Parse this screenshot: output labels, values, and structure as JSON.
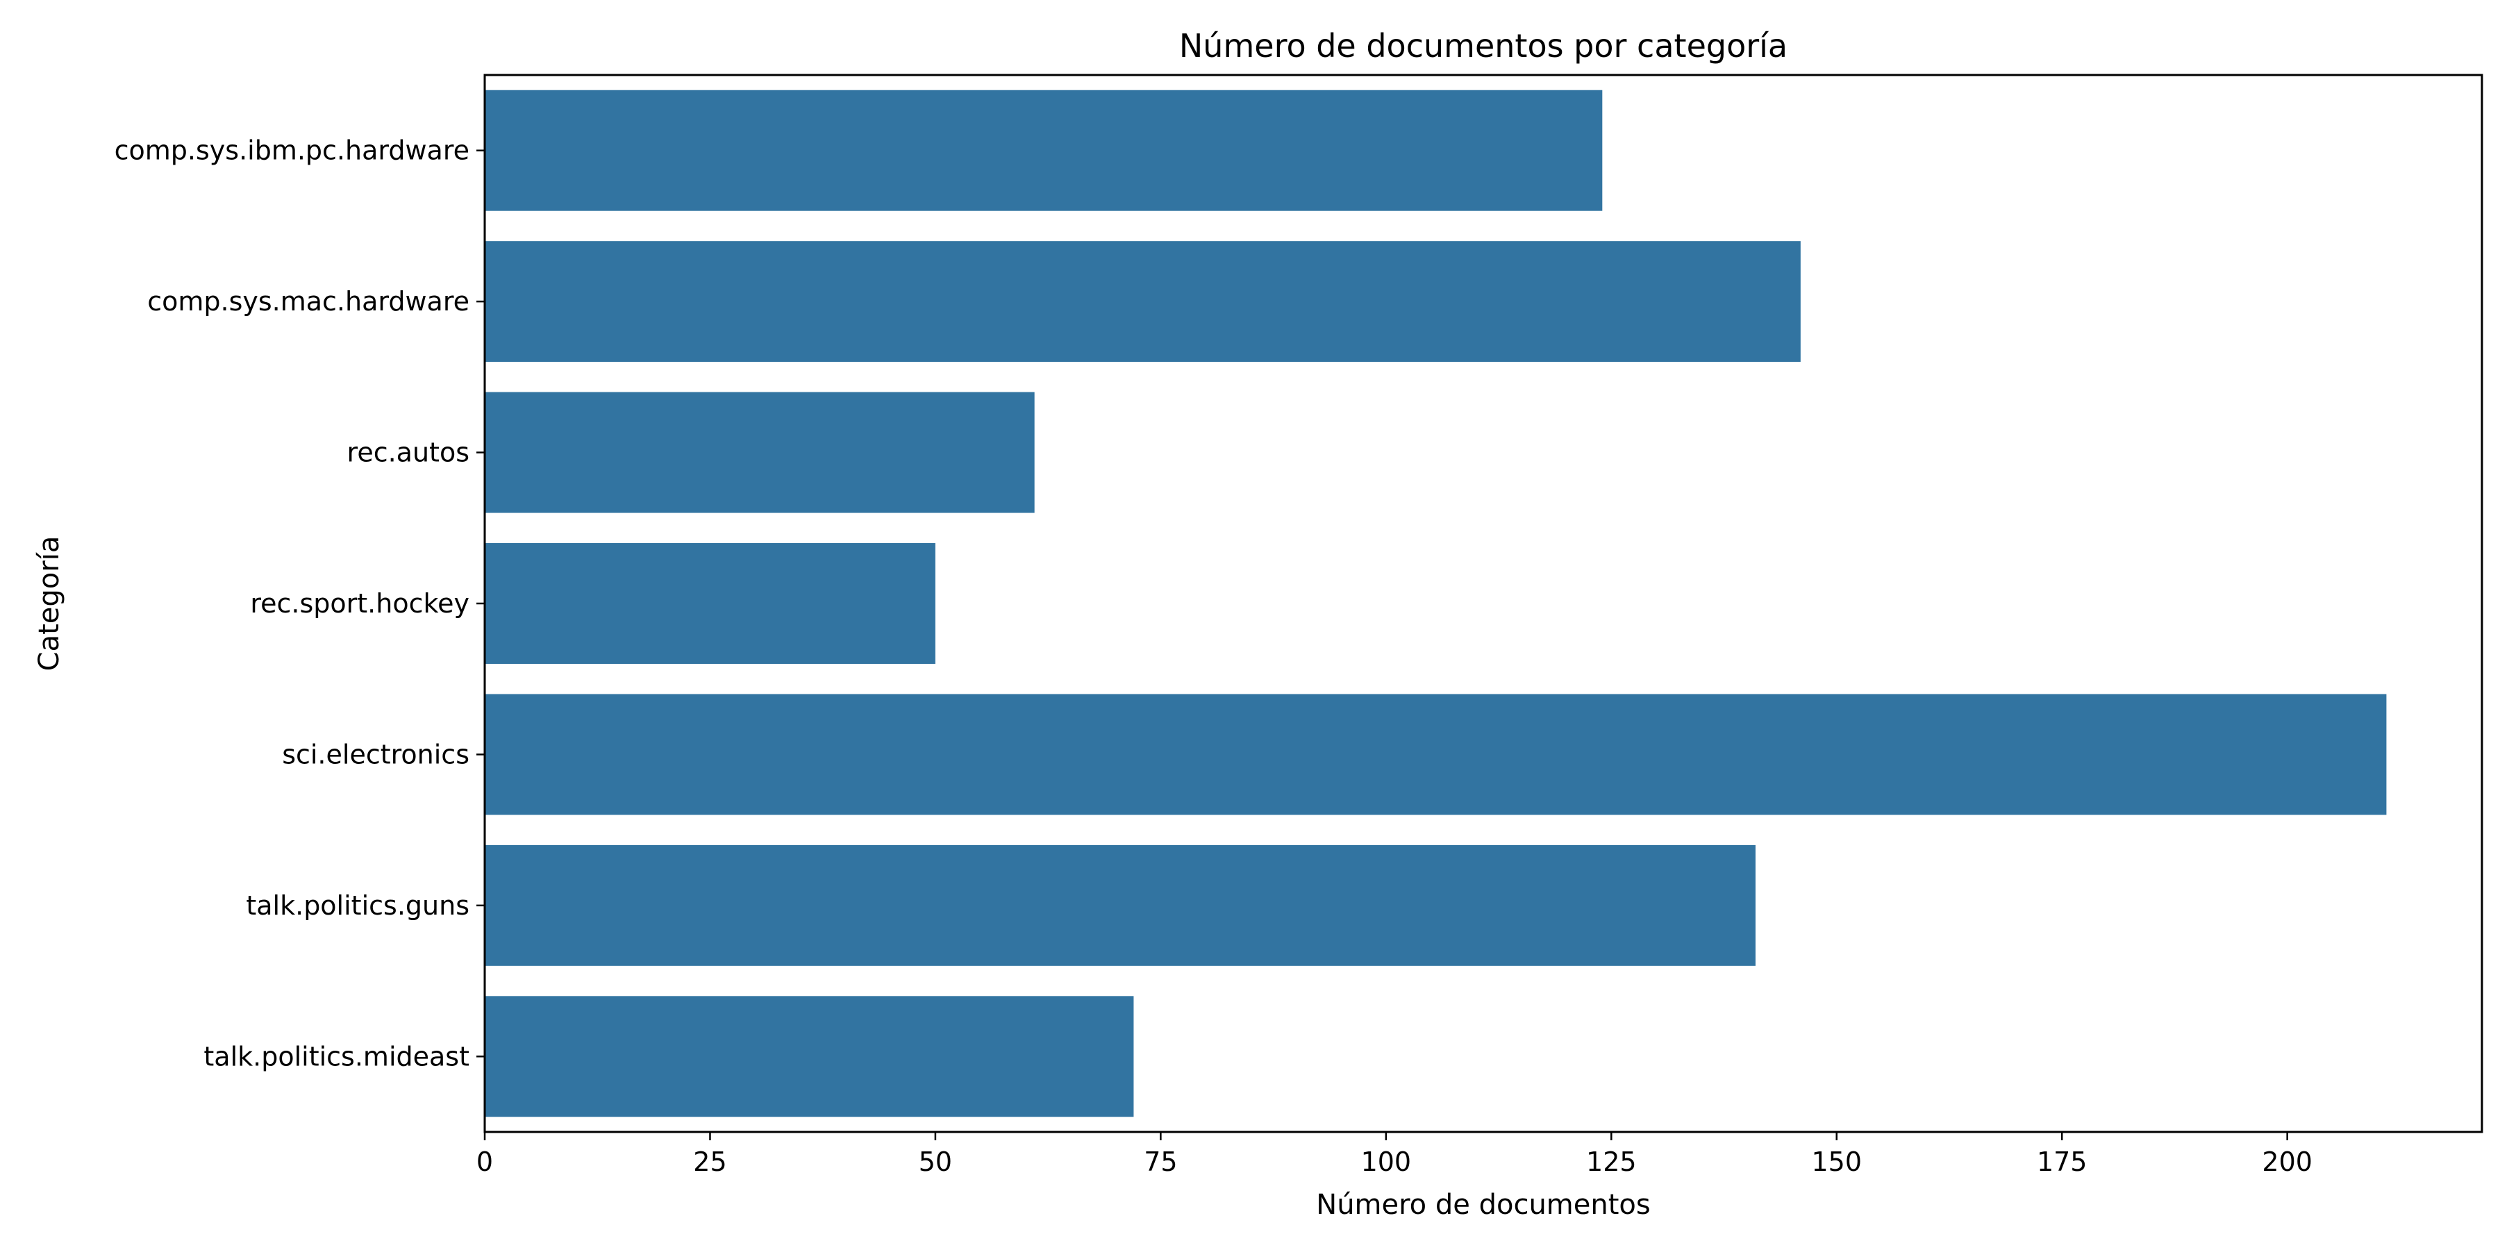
{
  "chart_data": {
    "type": "bar",
    "orientation": "horizontal",
    "title": "Número de documentos por categoría",
    "xlabel": "Número de documentos",
    "ylabel": "Categoría",
    "categories": [
      "comp.sys.ibm.pc.hardware",
      "comp.sys.mac.hardware",
      "rec.autos",
      "rec.sport.hockey",
      "sci.electronics",
      "talk.politics.guns",
      "talk.politics.mideast"
    ],
    "values": [
      124,
      146,
      61,
      50,
      211,
      141,
      72
    ],
    "xlim": [
      0,
      221.6
    ],
    "xticks": [
      0,
      25,
      50,
      75,
      100,
      125,
      150,
      175,
      200
    ],
    "bar_color": "#3274a1",
    "grid": false,
    "legend": "none"
  }
}
